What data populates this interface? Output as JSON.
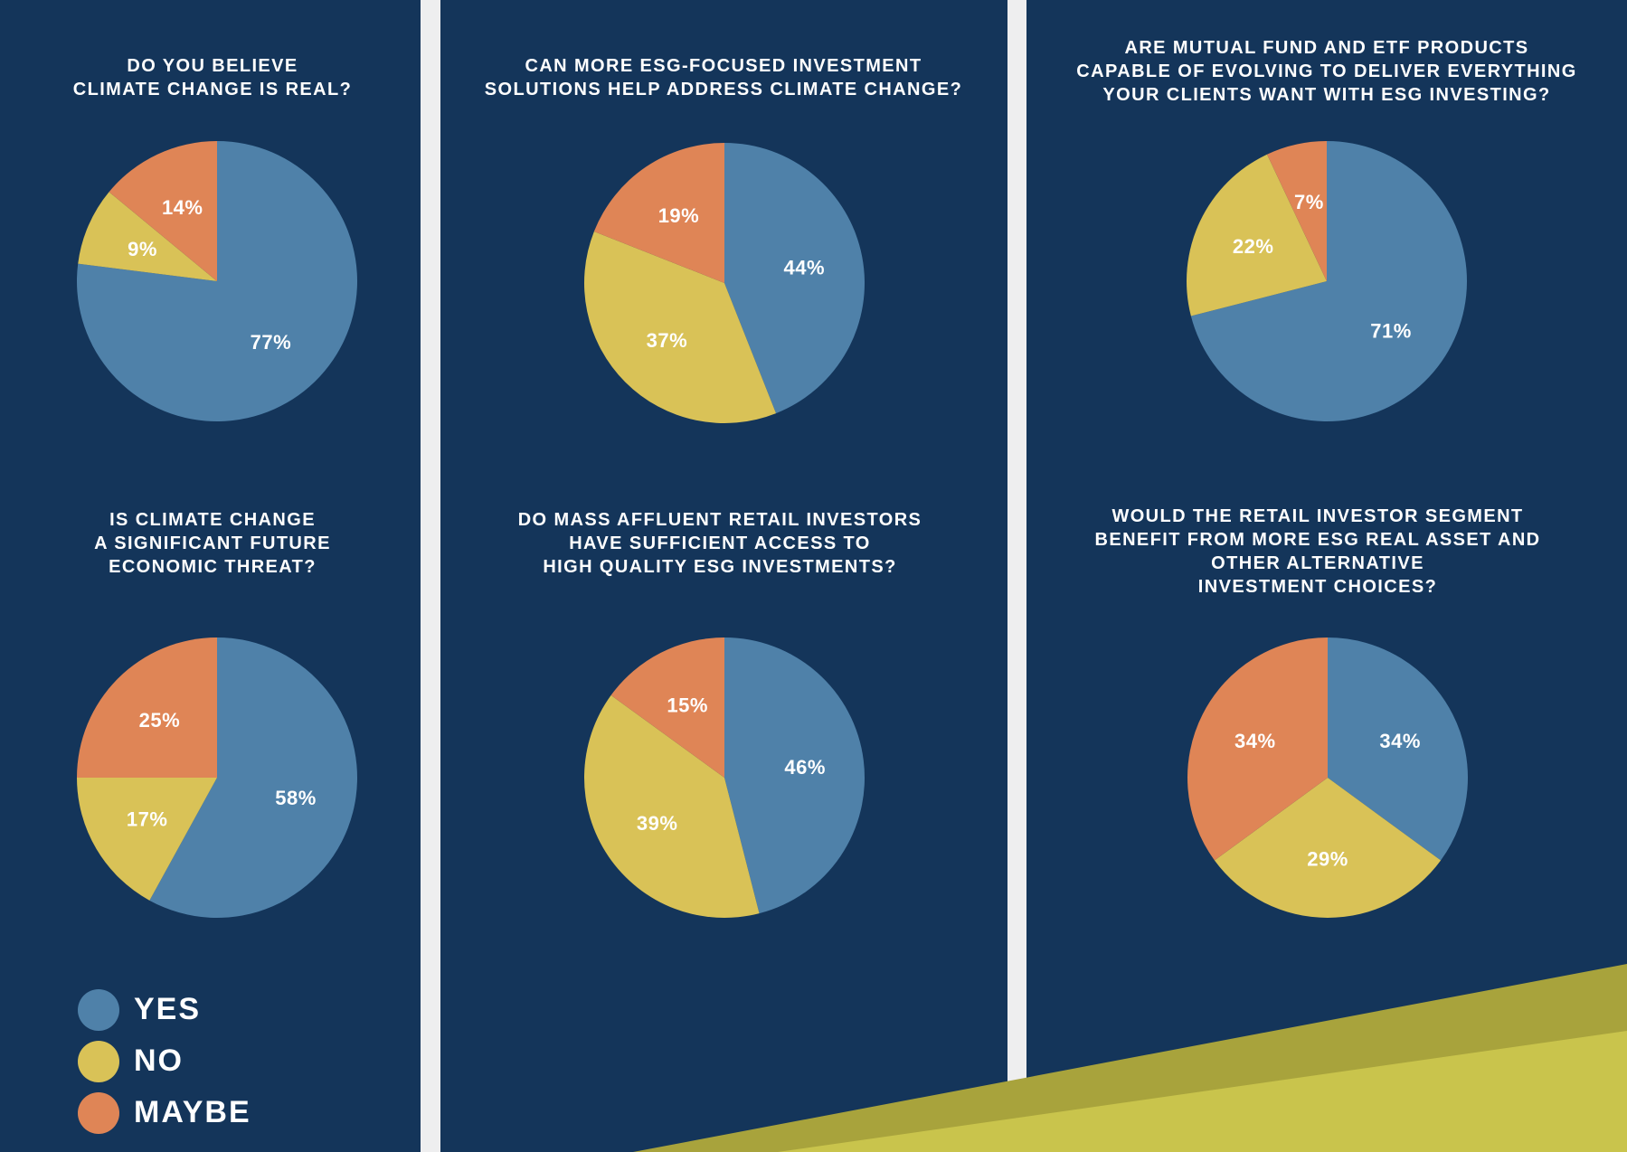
{
  "legend": {
    "items": [
      {
        "label": "YES",
        "color": "#4f81a9"
      },
      {
        "label": "NO",
        "color": "#d9c257"
      },
      {
        "label": "MAYBE",
        "color": "#df8556"
      }
    ]
  },
  "chart_data": [
    {
      "type": "pie",
      "title": "DO YOU BELIEVE\nCLIMATE CHANGE IS REAL?",
      "slices": [
        {
          "label": "YES",
          "value": 77,
          "display": "77%"
        },
        {
          "label": "NO",
          "value": 9,
          "display": "9%"
        },
        {
          "label": "MAYBE",
          "value": 14,
          "display": "14%"
        }
      ]
    },
    {
      "type": "pie",
      "title": "CAN MORE ESG-FOCUSED INVESTMENT\nSOLUTIONS HELP ADDRESS CLIMATE CHANGE?",
      "slices": [
        {
          "label": "YES",
          "value": 44,
          "display": "44%"
        },
        {
          "label": "NO",
          "value": 37,
          "display": "37%"
        },
        {
          "label": "MAYBE",
          "value": 19,
          "display": "19%"
        }
      ]
    },
    {
      "type": "pie",
      "title": "ARE MUTUAL FUND AND ETF PRODUCTS\nCAPABLE OF EVOLVING TO DELIVER EVERYTHING\nYOUR CLIENTS WANT WITH ESG INVESTING?",
      "slices": [
        {
          "label": "YES",
          "value": 71,
          "display": "71%"
        },
        {
          "label": "NO",
          "value": 22,
          "display": "22%"
        },
        {
          "label": "MAYBE",
          "value": 7,
          "display": "7%"
        }
      ]
    },
    {
      "type": "pie",
      "title": "IS CLIMATE CHANGE\nA SIGNIFICANT FUTURE\nECONOMIC THREAT?",
      "slices": [
        {
          "label": "YES",
          "value": 58,
          "display": "58%"
        },
        {
          "label": "NO",
          "value": 17,
          "display": "17%"
        },
        {
          "label": "MAYBE",
          "value": 25,
          "display": "25%"
        }
      ]
    },
    {
      "type": "pie",
      "title": "DO MASS AFFLUENT RETAIL INVESTORS\nHAVE SUFFICIENT ACCESS TO\nHIGH QUALITY ESG INVESTMENTS?",
      "slices": [
        {
          "label": "YES",
          "value": 46,
          "display": "46%"
        },
        {
          "label": "NO",
          "value": 39,
          "display": "39%"
        },
        {
          "label": "MAYBE",
          "value": 15,
          "display": "15%"
        }
      ]
    },
    {
      "type": "pie",
      "title": "WOULD THE RETAIL INVESTOR SEGMENT\nBENEFIT FROM MORE ESG REAL ASSET AND\nOTHER ALTERNATIVE\nINVESTMENT CHOICES?",
      "slices": [
        {
          "label": "YES",
          "value": 34,
          "display": "34%"
        },
        {
          "label": "NO",
          "value": 29,
          "display": "29%"
        },
        {
          "label": "MAYBE",
          "value": 34,
          "display": "34%"
        }
      ]
    }
  ]
}
